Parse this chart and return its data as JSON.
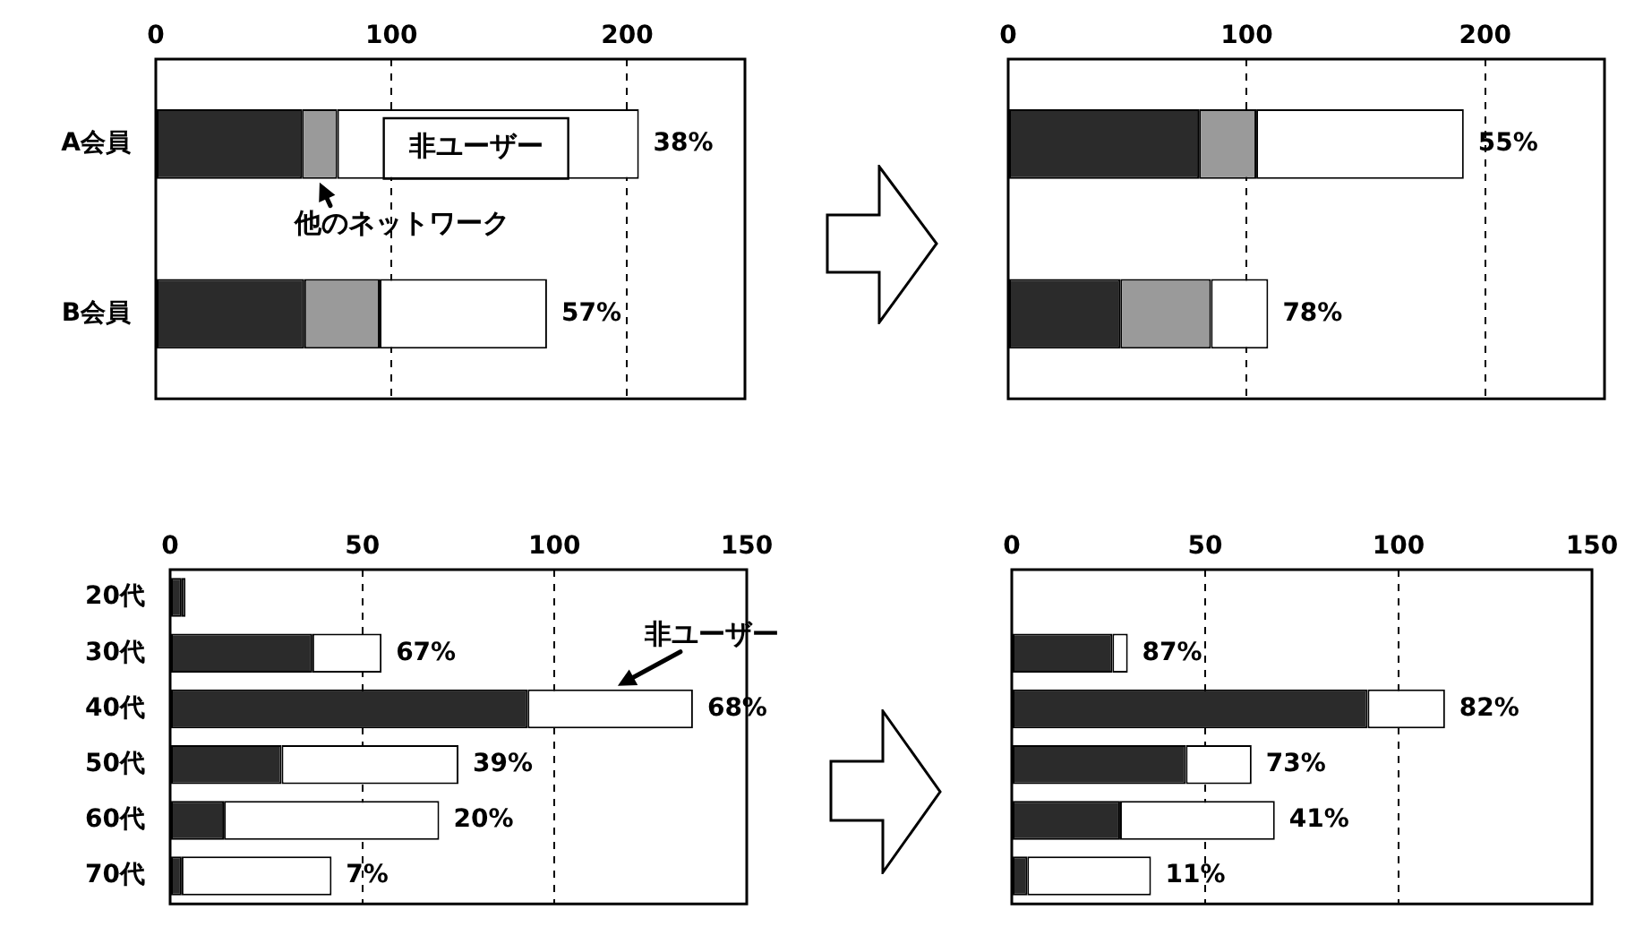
{
  "chart_data": [
    {
      "type": "bar",
      "orientation": "horizontal",
      "stacked": true,
      "categories": [
        "A会員",
        "B会員"
      ],
      "xlim": [
        0,
        250
      ],
      "xticks": [
        0,
        100,
        200
      ],
      "grid": "x",
      "series": [
        {
          "color": "#2b2b2b",
          "values": [
            62,
            63
          ]
        },
        {
          "color": "#9a9a9a",
          "values": [
            15,
            32
          ]
        },
        {
          "color": "#ffffff",
          "values": [
            128,
            71
          ]
        }
      ],
      "annotations": [
        "非ユーザー",
        "他のネットワーク",
        "38%",
        "57%"
      ]
    },
    {
      "type": "bar",
      "orientation": "horizontal",
      "stacked": true,
      "categories": [
        null,
        null
      ],
      "xlim": [
        0,
        250
      ],
      "xticks": [
        0,
        100,
        200
      ],
      "grid": "x",
      "series": [
        {
          "color": "#2b2b2b",
          "values": [
            80,
            47
          ]
        },
        {
          "color": "#9a9a9a",
          "values": [
            24,
            38
          ]
        },
        {
          "color": "#ffffff",
          "values": [
            87,
            24
          ]
        }
      ],
      "annotations": [
        "55%",
        "78%"
      ]
    },
    {
      "type": "bar",
      "orientation": "horizontal",
      "stacked": true,
      "categories": [
        "20代",
        "30代",
        "40代",
        "50代",
        "60代",
        "70代"
      ],
      "xlim": [
        0,
        150
      ],
      "xticks": [
        0,
        50,
        100,
        150
      ],
      "grid": "x",
      "series": [
        {
          "color": "#2b2b2b",
          "values": [
            3,
            37,
            93,
            29,
            14,
            3
          ]
        },
        {
          "color": "#ffffff",
          "values": [
            1,
            18,
            43,
            46,
            56,
            39
          ]
        }
      ],
      "annotations": [
        {
          "text": "非ユーザー",
          "x": 136,
          "y": "40代"
        },
        "67%",
        "68%",
        "39%",
        "20%",
        "7%"
      ]
    },
    {
      "type": "bar",
      "orientation": "horizontal",
      "stacked": true,
      "categories": [
        null,
        null,
        null,
        null,
        null,
        null
      ],
      "xlim": [
        0,
        150
      ],
      "xticks": [
        0,
        50,
        100,
        150
      ],
      "grid": "x",
      "series": [
        {
          "color": "#2b2b2b",
          "values": [
            null,
            26,
            92,
            45,
            28,
            4
          ]
        },
        {
          "color": "#ffffff",
          "values": [
            null,
            4,
            20,
            17,
            40,
            32
          ]
        }
      ],
      "annotations": [
        "87%",
        "82%",
        "73%",
        "41%",
        "11%"
      ]
    }
  ]
}
